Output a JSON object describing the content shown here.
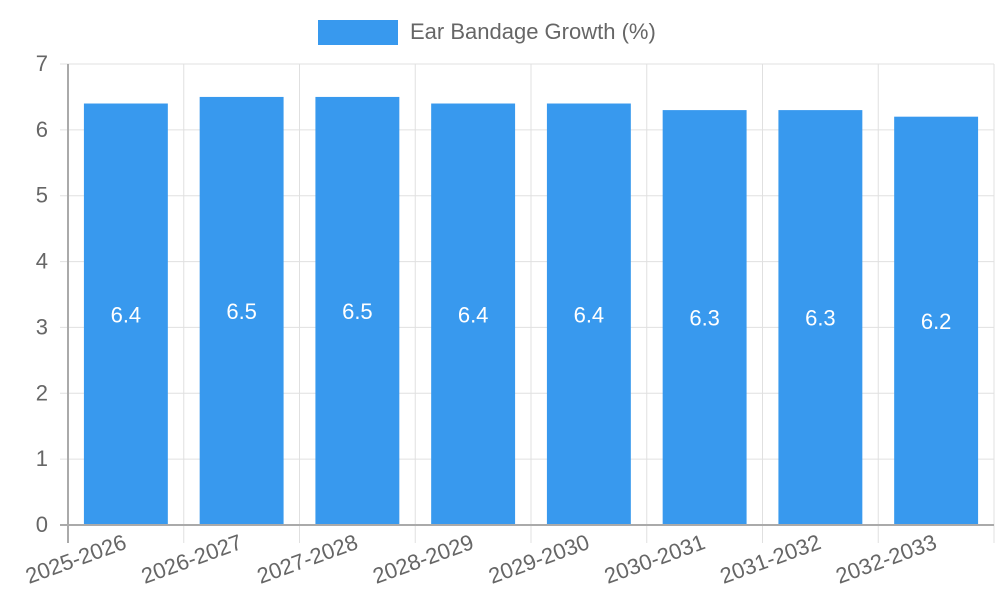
{
  "chart_data": {
    "type": "bar",
    "title": "",
    "legend": [
      {
        "label": "Ear Bandage Growth (%)",
        "color": "#3899ee"
      }
    ],
    "legend_position": "top",
    "categories": [
      "2025-2026",
      "2026-2027",
      "2027-2028",
      "2028-2029",
      "2029-2030",
      "2030-2031",
      "2031-2032",
      "2032-2033"
    ],
    "series": [
      {
        "name": "Ear Bandage Growth (%)",
        "values": [
          6.4,
          6.5,
          6.5,
          6.4,
          6.4,
          6.3,
          6.3,
          6.2
        ],
        "color": "#3899ee"
      }
    ],
    "data_labels": [
      "6.4",
      "6.5",
      "6.5",
      "6.4",
      "6.4",
      "6.3",
      "6.3",
      "6.2"
    ],
    "xlabel": "",
    "ylabel": "",
    "ylim": [
      0,
      7
    ],
    "yticks": [
      0,
      1,
      2,
      3,
      4,
      5,
      6,
      7
    ],
    "grid": true
  },
  "legend": {
    "label": "Ear Bandage Growth (%)"
  }
}
